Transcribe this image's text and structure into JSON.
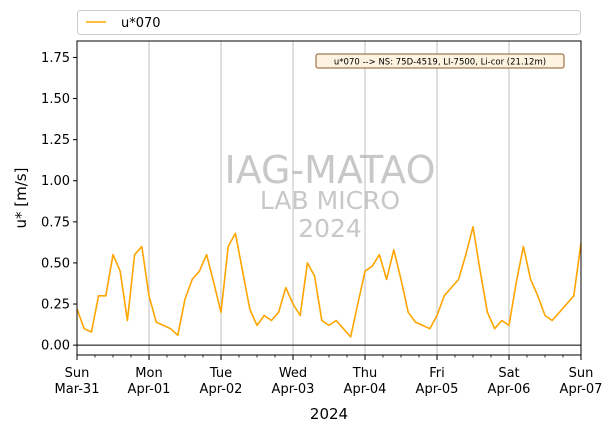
{
  "chart_data": {
    "type": "line",
    "xlabel": "2024",
    "ylabel": "u* [m/s]",
    "ylim": [
      -0.06,
      1.85
    ],
    "xlim_days": [
      0,
      7
    ],
    "yticks": [
      0.0,
      0.25,
      0.5,
      0.75,
      1.0,
      1.25,
      1.5,
      1.75
    ],
    "ytick_labels": [
      "0.00",
      "0.25",
      "0.50",
      "0.75",
      "1.00",
      "1.25",
      "1.50",
      "1.75"
    ],
    "xticks": [
      {
        "day": "Sun",
        "date": "Mar-31"
      },
      {
        "day": "Mon",
        "date": "Apr-01"
      },
      {
        "day": "Tue",
        "date": "Apr-02"
      },
      {
        "day": "Wed",
        "date": "Apr-03"
      },
      {
        "day": "Thu",
        "date": "Apr-04"
      },
      {
        "day": "Fri",
        "date": "Apr-05"
      },
      {
        "day": "Sat",
        "date": "Apr-06"
      },
      {
        "day": "Sun",
        "date": "Apr-07"
      }
    ],
    "grid": "vertical",
    "zero_line": true,
    "legend_placement": "top",
    "annotation": "u*070 --> NS: 75D-4519, LI-7500, Li-cor (21.12m)",
    "watermark": [
      "IAG-MATAO",
      "LAB MICRO",
      "2024"
    ],
    "series": [
      {
        "name": "u*070",
        "color": "#ffa500",
        "x": [
          0.0,
          0.1,
          0.2,
          0.3,
          0.4,
          0.5,
          0.6,
          0.7,
          0.8,
          0.9,
          1.0,
          1.1,
          1.2,
          1.3,
          1.4,
          1.5,
          1.6,
          1.7,
          1.8,
          1.9,
          2.0,
          2.1,
          2.2,
          2.3,
          2.4,
          2.5,
          2.6,
          2.7,
          2.8,
          2.9,
          3.0,
          3.1,
          3.2,
          3.3,
          3.4,
          3.5,
          3.6,
          3.7,
          3.8,
          3.9,
          4.0,
          4.1,
          4.2,
          4.3,
          4.4,
          4.5,
          4.6,
          4.7,
          4.8,
          4.9,
          5.0,
          5.1,
          5.2,
          5.3,
          5.4,
          5.5,
          5.6,
          5.7,
          5.8,
          5.9,
          6.0,
          6.1,
          6.2,
          6.3,
          6.4,
          6.5,
          6.6,
          6.7,
          6.8,
          6.9,
          7.0
        ],
        "values": [
          0.22,
          0.1,
          0.08,
          0.3,
          0.3,
          0.55,
          0.45,
          0.15,
          0.55,
          0.6,
          0.3,
          0.14,
          0.12,
          0.1,
          0.06,
          0.28,
          0.4,
          0.45,
          0.55,
          0.38,
          0.2,
          0.6,
          0.68,
          0.45,
          0.22,
          0.12,
          0.18,
          0.15,
          0.2,
          0.35,
          0.25,
          0.18,
          0.5,
          0.42,
          0.15,
          0.12,
          0.15,
          0.1,
          0.05,
          0.25,
          0.45,
          0.48,
          0.55,
          0.4,
          0.58,
          0.4,
          0.2,
          0.14,
          0.12,
          0.1,
          0.18,
          0.3,
          0.35,
          0.4,
          0.55,
          0.72,
          0.45,
          0.2,
          0.1,
          0.15,
          0.12,
          0.38,
          0.6,
          0.4,
          0.3,
          0.18,
          0.15,
          0.2,
          0.25,
          0.3,
          0.62
        ]
      }
    ]
  },
  "legend": {
    "label": "u*070"
  }
}
